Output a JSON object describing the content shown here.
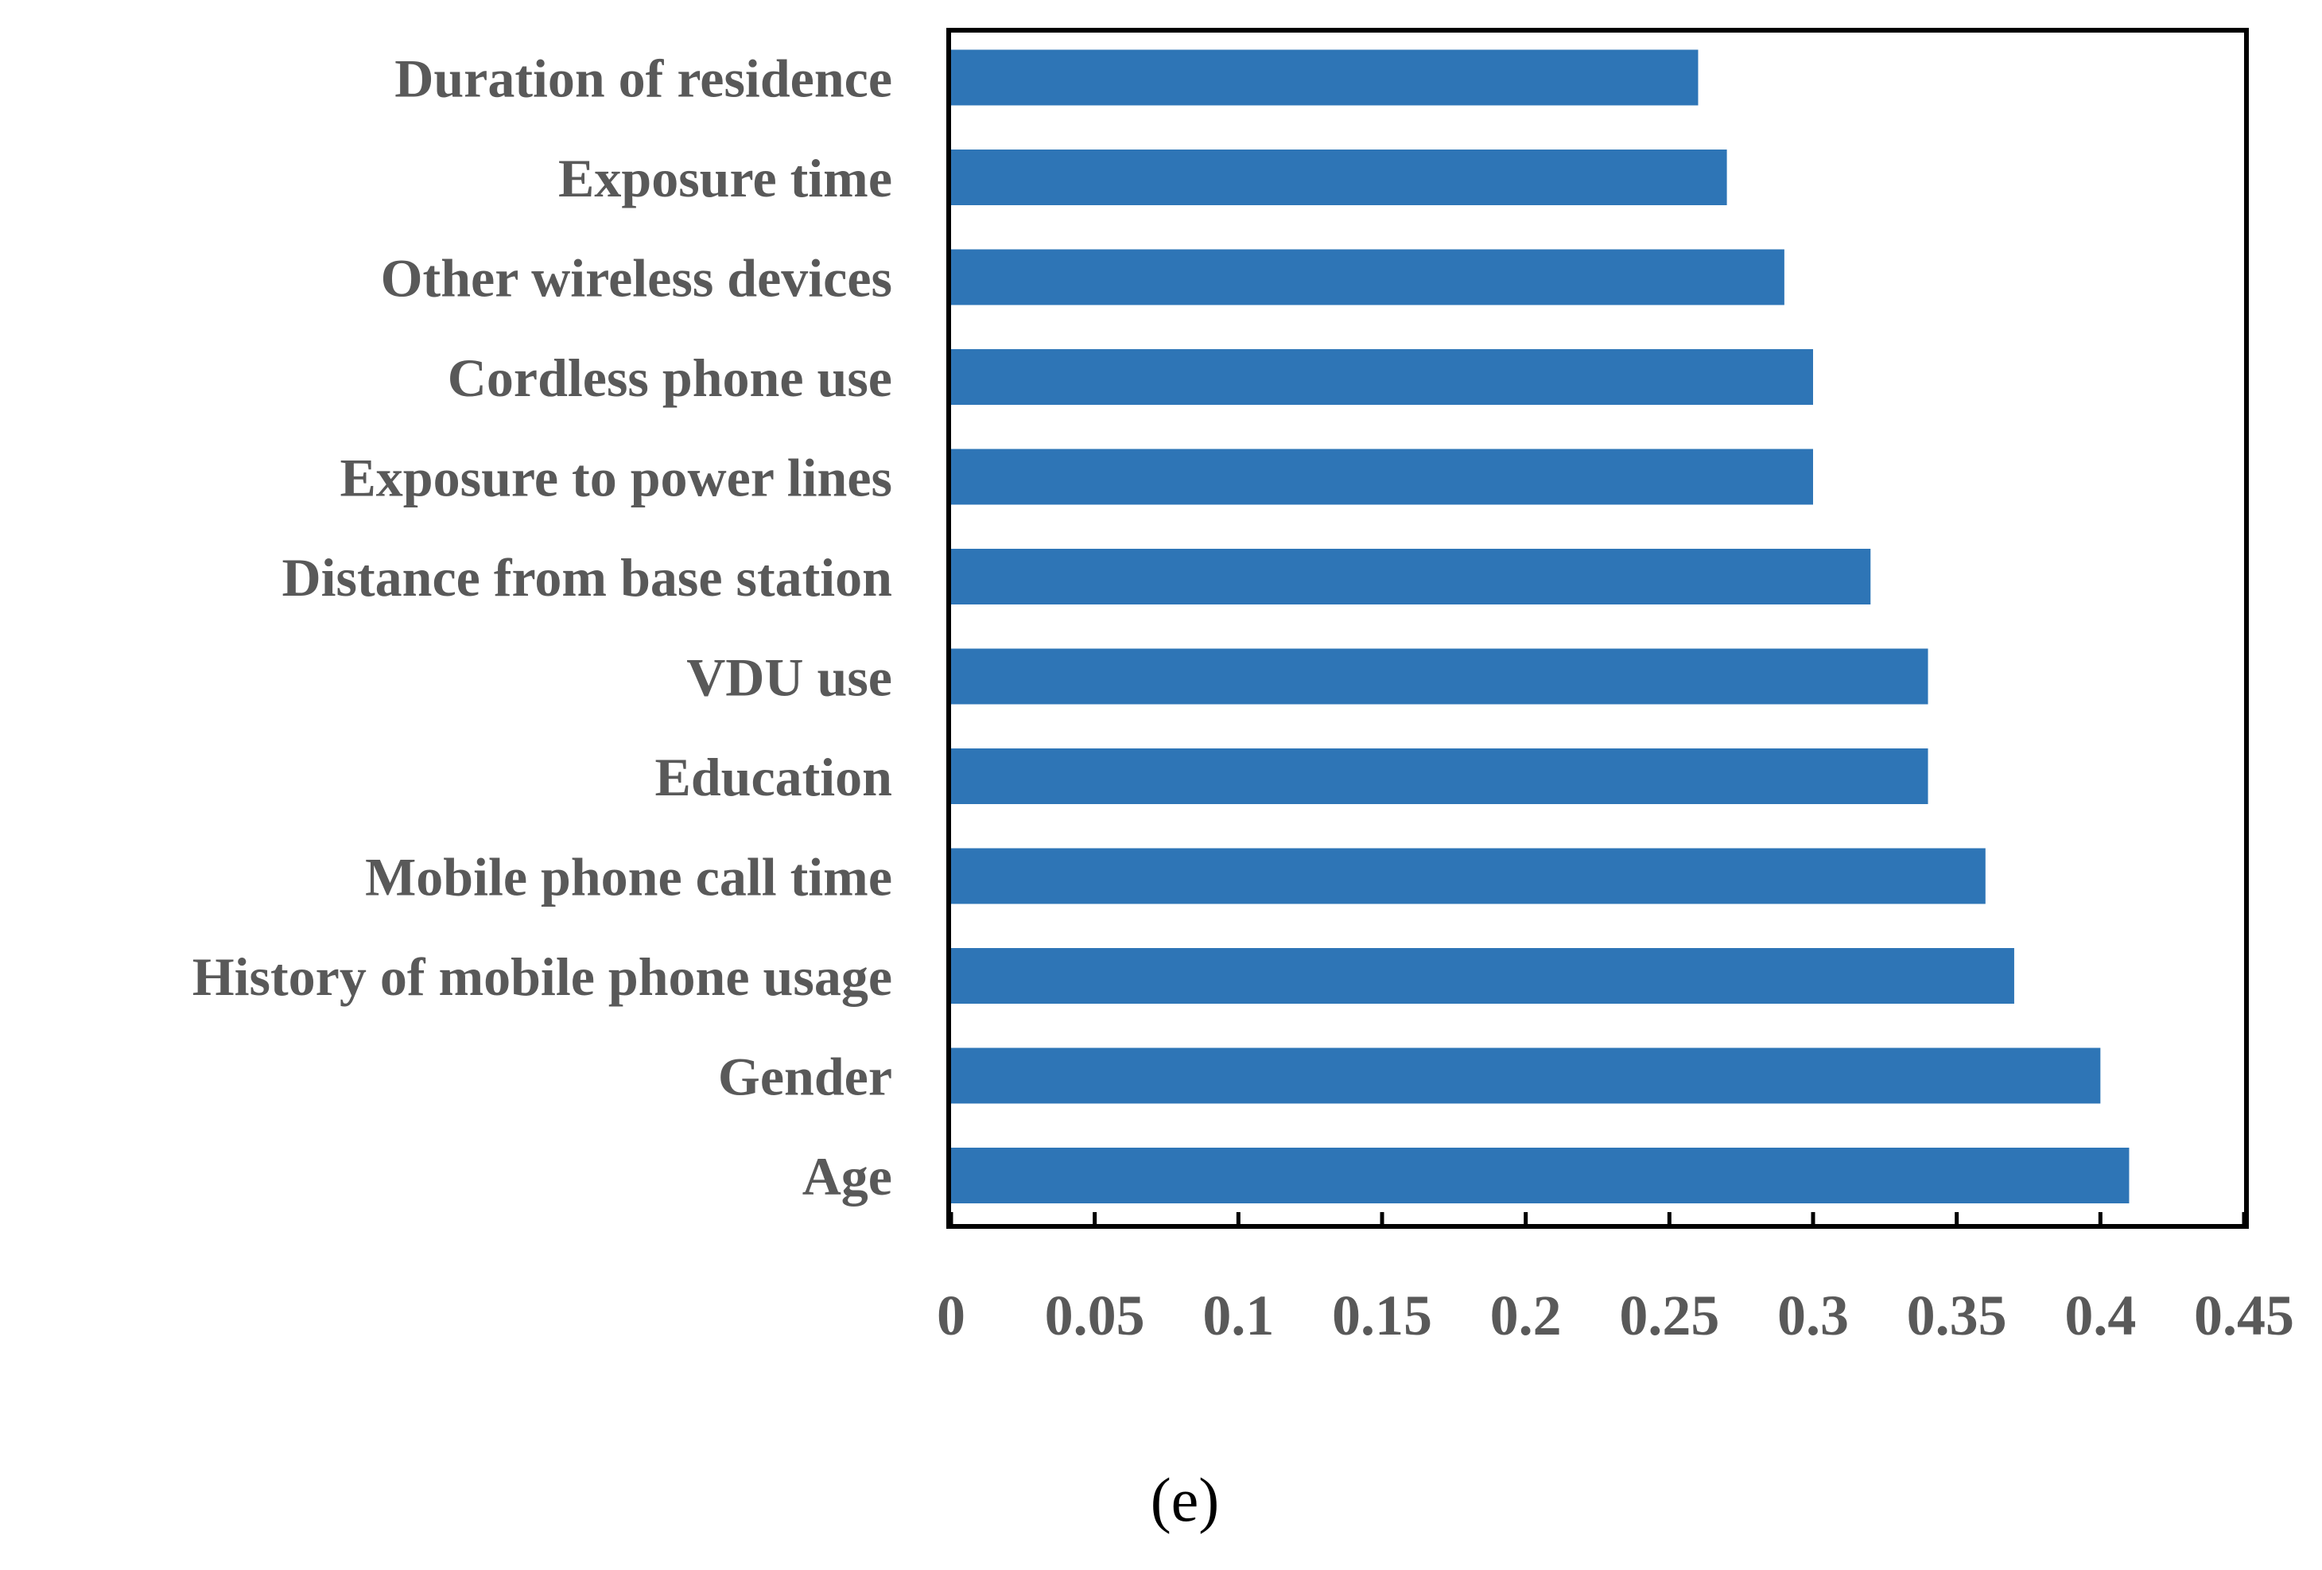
{
  "chart_data": {
    "type": "bar",
    "orientation": "horizontal",
    "categories": [
      "Age",
      "Gender",
      "History of mobile phone usage",
      "Mobile phone call time",
      "Education",
      "VDU use",
      "Distance from base station",
      "Exposure to power lines",
      "Cordless phone use",
      "Other wireless devices",
      "Exposure time",
      "Duration of residence"
    ],
    "values": [
      0.41,
      0.4,
      0.37,
      0.36,
      0.34,
      0.34,
      0.32,
      0.3,
      0.3,
      0.29,
      0.27,
      0.26
    ],
    "xlim": [
      0,
      0.45
    ],
    "xticks": [
      "0",
      "0.05",
      "0.1",
      "0.15",
      "0.2",
      "0.25",
      "0.3",
      "0.35",
      "0.4",
      "0.45"
    ],
    "title": "",
    "xlabel": "",
    "ylabel": "",
    "grid": false,
    "bar_color": "#2e75b6",
    "label_color": "#595959"
  },
  "caption": "(e)"
}
